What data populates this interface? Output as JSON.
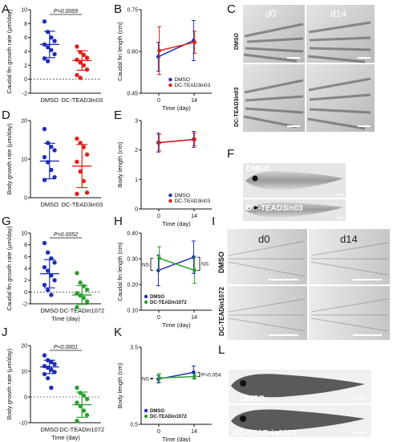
{
  "panel_labels": {
    "A": "A",
    "B": "B",
    "C": "C",
    "D": "D",
    "E": "E",
    "F": "F",
    "G": "G",
    "H": "H",
    "I": "I",
    "J": "J",
    "K": "K",
    "L": "L"
  },
  "colors": {
    "dmso": "#1f2db5",
    "tead3": "#e0201a",
    "tead1": "#2ca02c"
  },
  "chart_data": [
    {
      "panel": "A",
      "type": "scatter",
      "ylabel": "Caudal fin growth rate (μm/day)",
      "categories": [
        "DMSO",
        "DC-TEAD3in03"
      ],
      "ylim": [
        -2,
        10
      ],
      "yticks": [
        "-2",
        "0",
        "2",
        "4",
        "6",
        "8",
        "10"
      ],
      "pvalue": "P=0.0069",
      "series": [
        {
          "name": "DMSO",
          "color": "#1f2db5",
          "values": [
            8.3,
            6.8,
            6.0,
            5.5,
            5.0,
            4.6,
            4.2,
            3.6,
            3.0,
            2.6
          ],
          "mean": 5.0,
          "sd": 1.9
        },
        {
          "name": "DC-TEAD3in03",
          "color": "#e0201a",
          "values": [
            4.7,
            3.9,
            3.5,
            3.1,
            2.8,
            2.4,
            2.0,
            1.4,
            0.6,
            0.2
          ],
          "mean": 2.7,
          "sd": 1.4
        }
      ]
    },
    {
      "panel": "B",
      "type": "line",
      "ylabel": "Caudal fin length (cm)",
      "xlabel": "Time (day)",
      "x": [
        0,
        14
      ],
      "xticks": [
        "0",
        "14"
      ],
      "ylim": [
        0.45,
        0.75
      ],
      "yticks": [
        "0.45",
        "0.60",
        "0.75"
      ],
      "legend": [
        "DMSO",
        "DC-TEAD3in03"
      ],
      "legend_position": "bottom-right",
      "series": [
        {
          "name": "DMSO",
          "color": "#1f2db5",
          "values": [
            0.581,
            0.639
          ],
          "err": [
            0.052,
            0.072
          ]
        },
        {
          "name": "DC-TEAD3in03",
          "color": "#e0201a",
          "values": [
            0.603,
            0.633
          ],
          "err": [
            0.086,
            0.04
          ]
        }
      ]
    },
    {
      "panel": "D",
      "type": "scatter",
      "ylabel": "Body growth rate (μm/day)",
      "categories": [
        "DMSO",
        "DC-TEAD3in03"
      ],
      "ylim": [
        0,
        20
      ],
      "yticks": [
        "0",
        "10",
        "20"
      ],
      "series": [
        {
          "name": "DMSO",
          "color": "#1f2db5",
          "values": [
            17.8,
            14.2,
            13.2,
            12.3,
            10.5,
            9.2,
            7.2,
            5.3,
            4.6
          ],
          "mean": 9.5,
          "sd": 4.6
        },
        {
          "name": "DC-TEAD3in03",
          "color": "#e0201a",
          "values": [
            15.3,
            14.2,
            13.1,
            11.2,
            9.3,
            6.8,
            4.3,
            1.3,
            1.0
          ],
          "mean": 8.2,
          "sd": 5.6
        }
      ]
    },
    {
      "panel": "E",
      "type": "line",
      "ylabel": "Body length (cm)",
      "xlabel": "Time (day)",
      "x": [
        0,
        14
      ],
      "xticks": [
        "0",
        "14"
      ],
      "ylim": [
        0,
        3
      ],
      "yticks": [
        "0",
        "1",
        "2",
        "3"
      ],
      "legend": [
        "DMSO",
        "DC-TEAD3in03"
      ],
      "legend_position": "bottom-right",
      "series": [
        {
          "name": "DMSO",
          "color": "#1f2db5",
          "values": [
            2.25,
            2.36
          ],
          "err": [
            0.32,
            0.27
          ]
        },
        {
          "name": "DC-TEAD3in03",
          "color": "#e0201a",
          "values": [
            2.25,
            2.36
          ],
          "err": [
            0.28,
            0.22
          ]
        }
      ]
    },
    {
      "panel": "G",
      "type": "scatter",
      "ylabel": "Caudal fin growth rate (μm/day)",
      "xlabel": "Time (day)",
      "categories": [
        "DMSO",
        "DC-TEADin1072"
      ],
      "ylim": [
        -2,
        10
      ],
      "yticks": [
        "-2",
        "0",
        "2",
        "4",
        "6",
        "8",
        "10"
      ],
      "pvalue": "P=0.0052",
      "series": [
        {
          "name": "DMSO",
          "color": "#1f2db5",
          "values": [
            8.3,
            6.7,
            5.7,
            5.0,
            4.2,
            3.6,
            2.8,
            2.0,
            1.2,
            0.3,
            -0.5
          ],
          "mean": 3.1,
          "sd": 2.4
        },
        {
          "name": "DC-TEADin1072",
          "color": "#2ca02c",
          "values": [
            3.2,
            1.6,
            1.0,
            0.4,
            -0.2,
            -0.6,
            -1.0,
            -1.6,
            -2.6
          ],
          "mean": -0.5,
          "sd": 1.6
        }
      ]
    },
    {
      "panel": "H",
      "type": "line",
      "ylabel": "Caudal fin length (cm)",
      "xlabel": "Time (day)",
      "x": [
        0,
        14
      ],
      "xticks": [
        "0",
        "14"
      ],
      "ylim": [
        0.1,
        0.4
      ],
      "yticks": [
        "0.10",
        "0.20",
        "0.30",
        "0.40"
      ],
      "legend": [
        "DMSO",
        "DC-TEADin1072"
      ],
      "legend_position": "bottom-left",
      "annotations": [
        "NS",
        "NS"
      ],
      "series": [
        {
          "name": "DMSO",
          "color": "#1f2db5",
          "values": [
            0.255,
            0.306
          ],
          "err": [
            0.06,
            0.063
          ]
        },
        {
          "name": "DC-TEADin1072",
          "color": "#2ca02c",
          "values": [
            0.302,
            0.255
          ],
          "err": [
            0.045,
            0.05
          ]
        }
      ]
    },
    {
      "panel": "J",
      "type": "scatter",
      "ylabel": "Body growth rate (μm/day)",
      "xlabel": "Time (day)",
      "categories": [
        "DMSO",
        "DC-TEADin1072"
      ],
      "ylim": [
        -10,
        20
      ],
      "yticks": [
        "-10",
        "0",
        "10",
        "20"
      ],
      "pvalue": "P<0.0001",
      "series": [
        {
          "name": "DMSO",
          "color": "#1f2db5",
          "values": [
            16.2,
            14.3,
            13.6,
            12.8,
            12.0,
            11.4,
            10.6,
            9.7,
            8.9,
            7.3,
            3.6
          ],
          "mean": 11.7,
          "sd": 2.6
        },
        {
          "name": "DC-TEADin1072",
          "color": "#2ca02c",
          "values": [
            3.6,
            1.6,
            0.6,
            -0.8,
            -2.2,
            -3.6,
            -5.3,
            -7.0,
            -9.3
          ],
          "mean": -3.0,
          "sd": 4.9
        }
      ]
    },
    {
      "panel": "K",
      "type": "line",
      "ylabel": "Body length (cm)",
      "xlabel": "Time (day)",
      "x": [
        0,
        14
      ],
      "xticks": [
        "0",
        "14"
      ],
      "ylim": [
        0.5,
        3.5
      ],
      "yticks": [
        "0.5",
        "3.5"
      ],
      "legend": [
        "DMSO",
        "DC-TEADin1072"
      ],
      "legend_position": "bottom-left",
      "annotations": [
        "NS",
        "P=0.054"
      ],
      "series": [
        {
          "name": "DMSO",
          "color": "#1f2db5",
          "values": [
            2.26,
            2.52
          ],
          "err": [
            0.15,
            0.25
          ]
        },
        {
          "name": "DC-TEADin1072",
          "color": "#2ca02c",
          "values": [
            2.3,
            2.36
          ],
          "err": [
            0.17,
            0.1
          ]
        }
      ]
    }
  ],
  "photos": {
    "C": {
      "headers": [
        "d0",
        "d14"
      ],
      "row_label": [
        "DMSO",
        "DC-TEAD3in03"
      ]
    },
    "F": {
      "labels": [
        "DMSO",
        "DC-TEAD3in03"
      ]
    },
    "I": {
      "headers": [
        "d0",
        "d14"
      ],
      "row_label": [
        "DMSO",
        "DC-TEADin1072"
      ]
    },
    "L": {
      "labels": [
        "DMSO",
        "DC-TEAD-in1072"
      ]
    }
  }
}
